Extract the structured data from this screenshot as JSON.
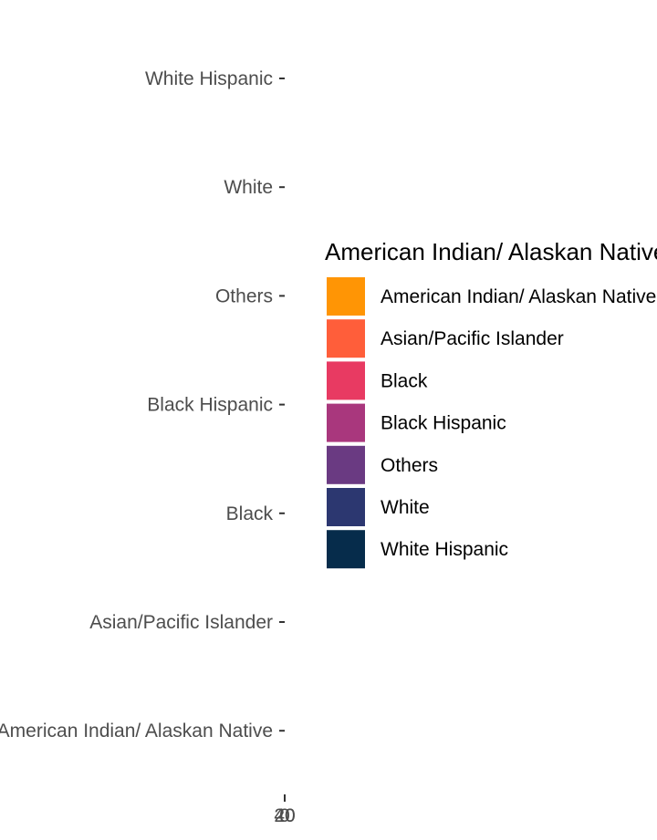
{
  "chart_data": {
    "type": "bar",
    "orientation": "horizontal",
    "categories": [
      "American Indian/ Alaskan Native",
      "Asian/Pacific Islander",
      "Black",
      "Black Hispanic",
      "Others",
      "White",
      "White Hispanic"
    ],
    "values": [
      0,
      0,
      0,
      0,
      0,
      0,
      0
    ],
    "x_tick_labels": [
      "0",
      "20",
      "40"
    ],
    "title": "",
    "xlabel": "",
    "ylabel": "",
    "grid": false,
    "legend": {
      "title": "American Indian/ Alaskan Native",
      "placement": "right",
      "entries": [
        {
          "label": "American Indian/ Alaskan Native",
          "color": "#FF9505"
        },
        {
          "label": "Asian/Pacific Islander",
          "color": "#FF5E3A"
        },
        {
          "label": "Black",
          "color": "#E83A62"
        },
        {
          "label": "Black Hispanic",
          "color": "#A9377D"
        },
        {
          "label": "Others",
          "color": "#6A3A82"
        },
        {
          "label": "White",
          "color": "#2C3770"
        },
        {
          "label": "White Hispanic",
          "color": "#062C4B"
        }
      ]
    }
  }
}
